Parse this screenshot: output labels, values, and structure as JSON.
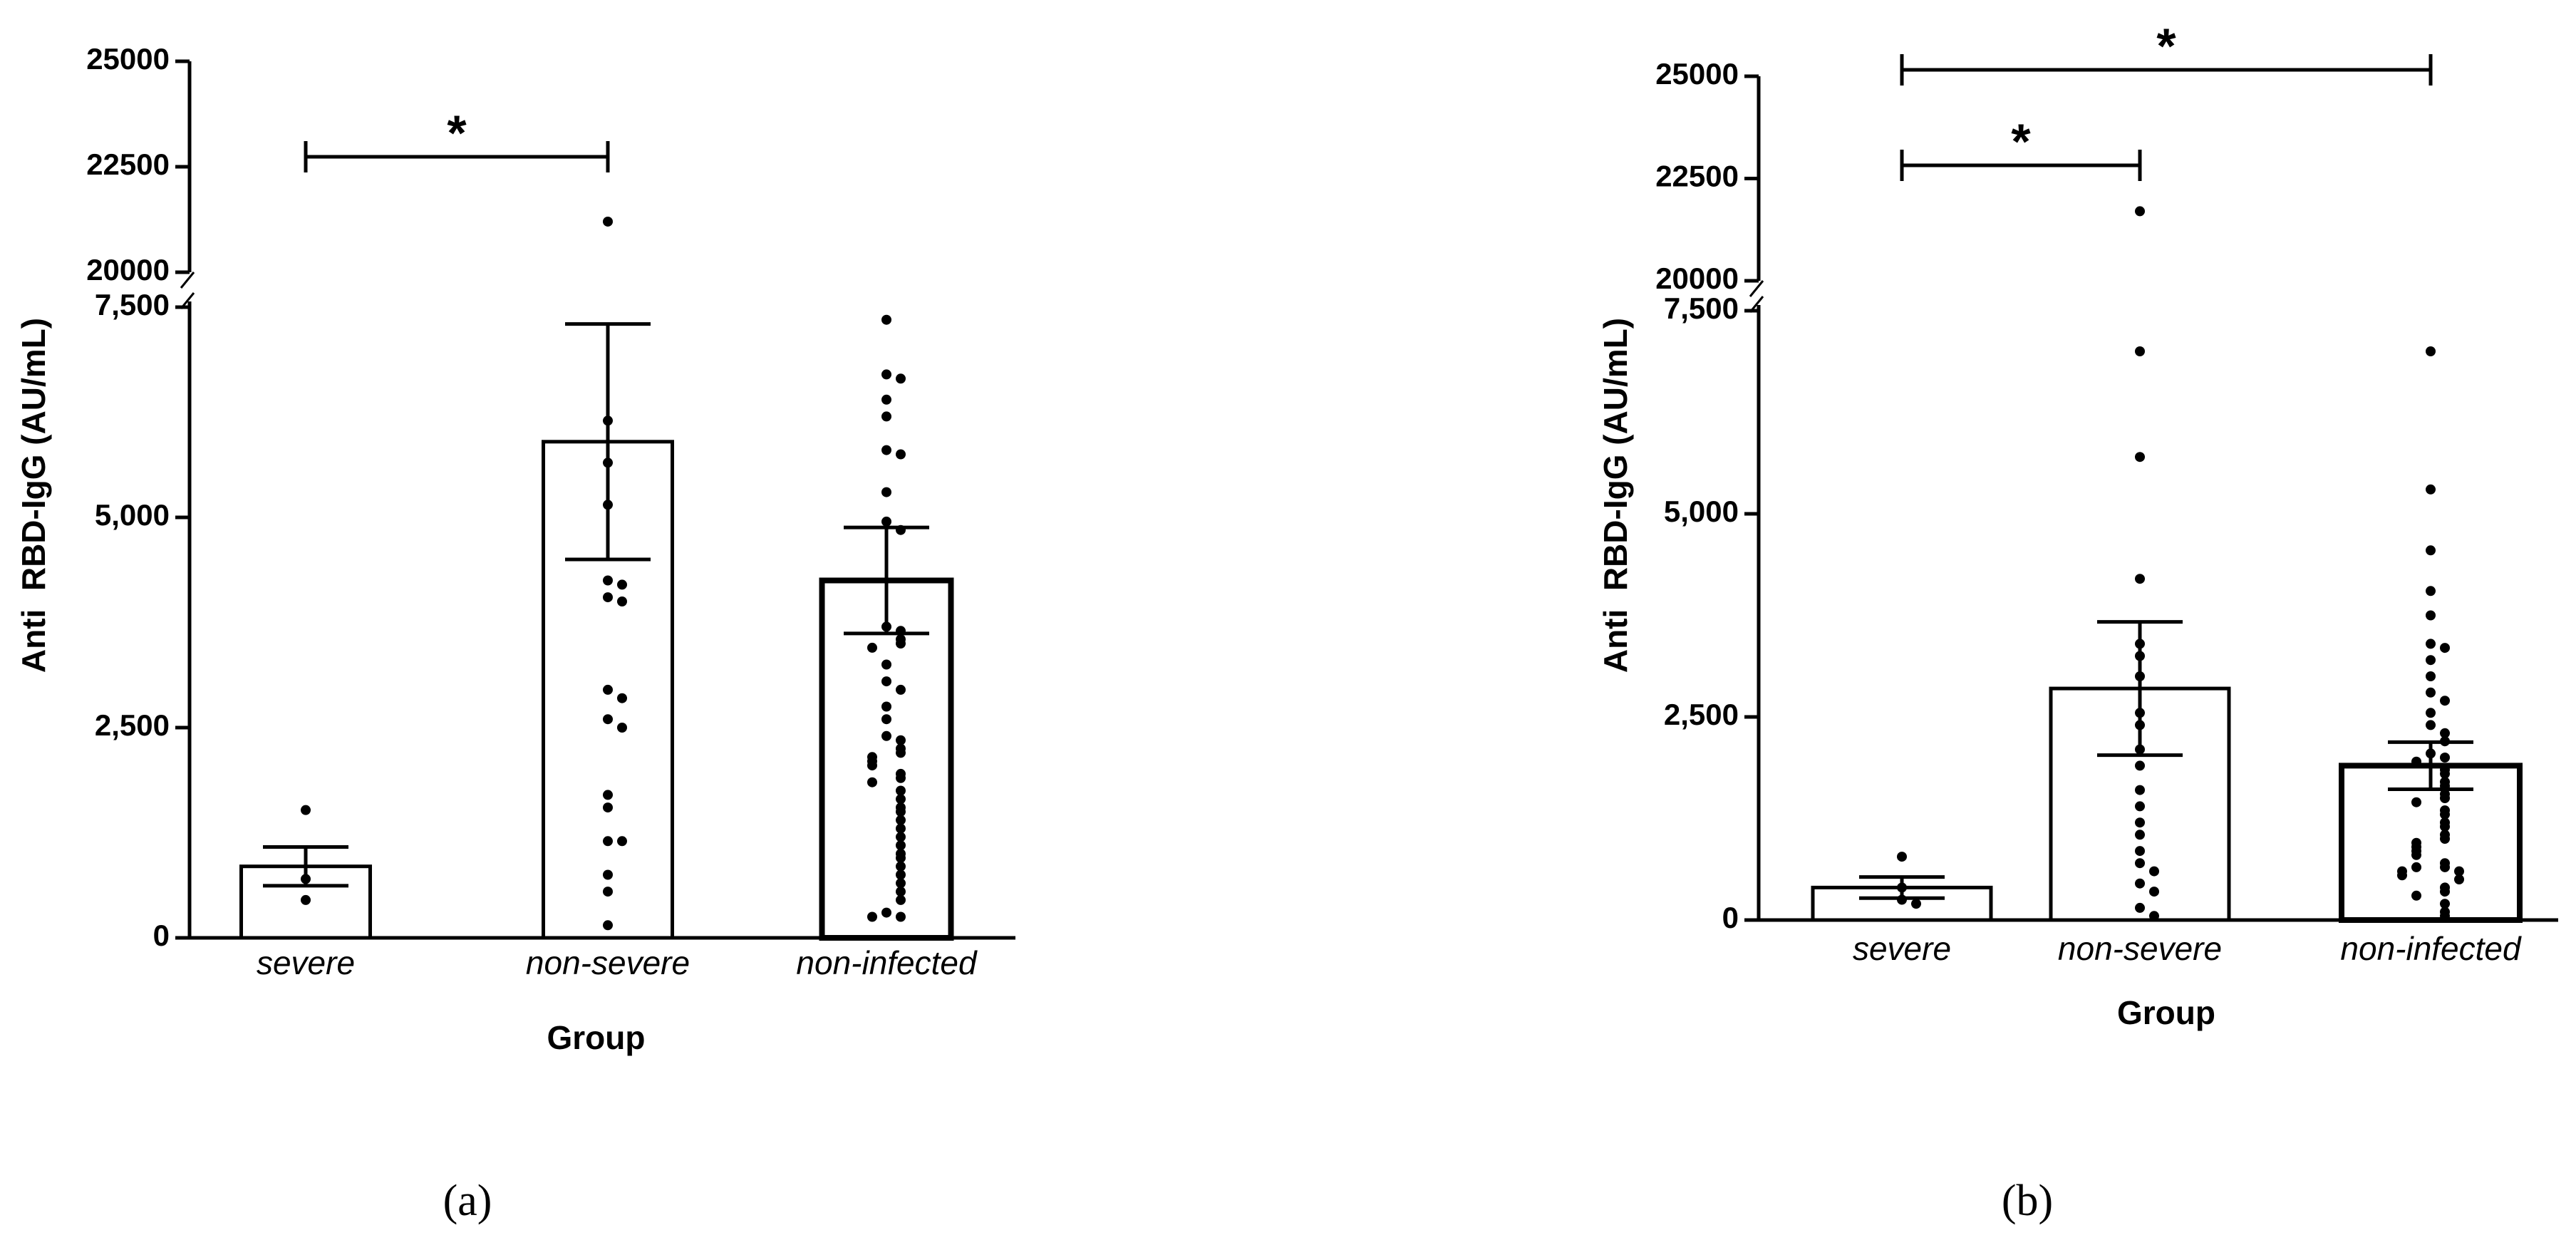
{
  "chart_data": [
    {
      "type": "bar",
      "label": "(a)",
      "x_label": "Group",
      "y_label": "Anti  RBD-IgG (AU/mL)",
      "categories": [
        "severe",
        "non-severe",
        "non-infected"
      ],
      "values": [
        850,
        5900,
        4250
      ],
      "errors": [
        230,
        1400,
        630
      ],
      "points": [
        [
          1520,
          700,
          450
        ],
        [
          21200,
          6150,
          5650,
          5150,
          4250,
          4200,
          4050,
          4000,
          2950,
          2850,
          2600,
          2500,
          1700,
          1550,
          1150,
          1150,
          750,
          550,
          150
        ],
        [
          7350,
          6700,
          6650,
          6400,
          6200,
          5800,
          5750,
          5300,
          4950,
          4850,
          3700,
          3650,
          3550,
          3500,
          3450,
          3250,
          3050,
          2950,
          2750,
          2600,
          2400,
          2350,
          2250,
          2200,
          2150,
          2100,
          2050,
          1950,
          1900,
          1850,
          1750,
          1650,
          1550,
          1500,
          1400,
          1300,
          1200,
          1100,
          1000,
          950,
          850,
          750,
          650,
          550,
          450,
          300,
          250,
          250
        ]
      ],
      "color": "#ffffff",
      "edgecolor": "#000000",
      "ylim": [
        0,
        7500
      ],
      "ylim_upper": [
        20000,
        25000
      ],
      "yticks": [
        {
          "value": 0,
          "label": "0"
        },
        {
          "value": 2500,
          "label": "2,500"
        },
        {
          "value": 5000,
          "label": "5,000"
        },
        {
          "value": 7500,
          "label": "7,500"
        },
        20000,
        22500,
        25000
      ],
      "significance": [
        {
          "groups": [
            0,
            1
          ],
          "label": "*"
        }
      ]
    },
    {
      "type": "bar",
      "label": "(b)",
      "x_label": "Group",
      "y_label": "Anti  RBD-IgG (AU/mL)",
      "categories": [
        "severe",
        "non-severe",
        "non-infected"
      ],
      "values": [
        400,
        2850,
        1900
      ],
      "errors": [
        130,
        820,
        290
      ],
      "points": [
        [
          780,
          400,
          250,
          200
        ],
        [
          21700,
          7000,
          5700,
          4200,
          3400,
          3250,
          3000,
          2550,
          2400,
          2100,
          1900,
          1600,
          1400,
          1200,
          1050,
          850,
          700,
          600,
          450,
          350,
          150,
          50
        ],
        [
          7000,
          5300,
          4550,
          4050,
          3750,
          3400,
          3350,
          3200,
          3000,
          2800,
          2700,
          2550,
          2400,
          2300,
          2200,
          2050,
          2000,
          1950,
          1850,
          1800,
          1700,
          1650,
          1550,
          1500,
          1450,
          1350,
          1300,
          1200,
          1150,
          1050,
          1000,
          950,
          900,
          850,
          800,
          700,
          650,
          650,
          600,
          600,
          550,
          500,
          400,
          350,
          300,
          200,
          100,
          50
        ]
      ],
      "color": "#ffffff",
      "edgecolor": "#000000",
      "ylim": [
        0,
        7500
      ],
      "ylim_upper": [
        20000,
        25000
      ],
      "yticks": [
        {
          "value": 0,
          "label": "0"
        },
        {
          "value": 2500,
          "label": "2,500"
        },
        {
          "value": 5000,
          "label": "5,000"
        },
        {
          "value": 7500,
          "label": "7,500"
        },
        20000,
        22500,
        25000
      ],
      "significance": [
        {
          "groups": [
            0,
            1
          ],
          "label": "*"
        },
        {
          "groups": [
            0,
            2
          ],
          "label": "*"
        }
      ]
    }
  ]
}
